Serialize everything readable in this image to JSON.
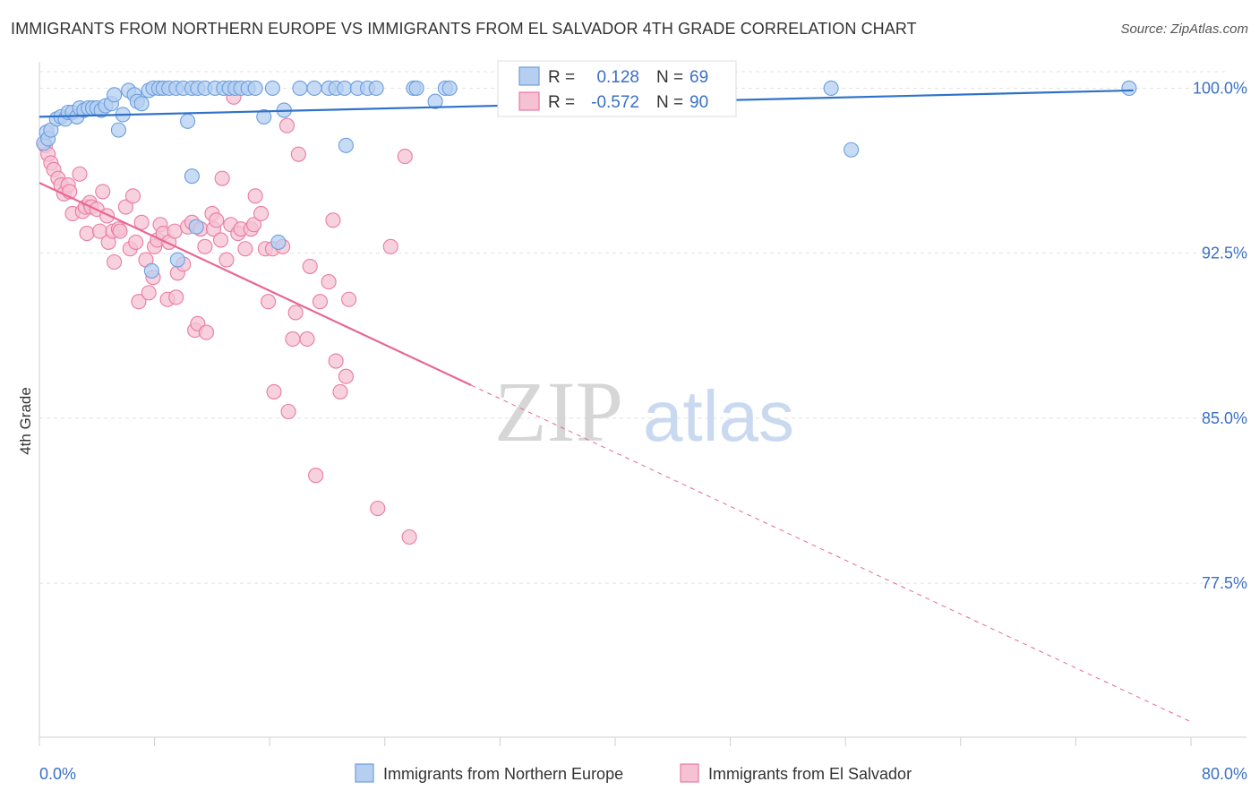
{
  "title": "IMMIGRANTS FROM NORTHERN EUROPE VS IMMIGRANTS FROM EL SALVADOR 4TH GRADE CORRELATION CHART",
  "source": "Source: ZipAtlas.com",
  "watermark": {
    "zip": "ZIP",
    "atlas": "atlas"
  },
  "colors": {
    "blue": "#6a9ee0",
    "blue_fill": "#b6cff0",
    "pink": "#ea7ba2",
    "pink_fill": "#f5c1d3",
    "blue_line": "#2f72c8",
    "pink_line": "#e86794",
    "label": "#3a6fc4"
  },
  "chart_data": {
    "type": "scatter",
    "title": "IMMIGRANTS FROM NORTHERN EUROPE VS IMMIGRANTS FROM EL SALVADOR 4TH GRADE CORRELATION CHART",
    "xlabel": "",
    "ylabel": "4th Grade",
    "xlim": [
      0,
      80
    ],
    "ylim": [
      70.5,
      101.2
    ],
    "x_tick_labels": [
      "0.0%",
      "80.0%"
    ],
    "y_ticks": [
      77.5,
      85.0,
      92.5,
      100.0
    ],
    "y_tick_labels": [
      "77.5%",
      "85.0%",
      "92.5%",
      "100.0%"
    ],
    "grid": true,
    "legend_position": "bottom-center",
    "stats": [
      {
        "r_label": "R =",
        "r": "0.128",
        "n_label": "N =",
        "n": "69"
      },
      {
        "r_label": "R =",
        "r": "-0.572",
        "n_label": "N =",
        "n": "90"
      }
    ],
    "series": [
      {
        "name": "Immigrants from Northern Europe",
        "trend": {
          "x": [
            0,
            76
          ],
          "y": [
            98.7,
            99.9
          ]
        },
        "points": [
          [
            0.3,
            97.5
          ],
          [
            0.5,
            98.0
          ],
          [
            0.6,
            97.7
          ],
          [
            0.8,
            98.1
          ],
          [
            1.2,
            98.6
          ],
          [
            1.5,
            98.7
          ],
          [
            1.8,
            98.6
          ],
          [
            2.0,
            98.9
          ],
          [
            2.3,
            98.9
          ],
          [
            2.6,
            98.7
          ],
          [
            2.8,
            99.1
          ],
          [
            3.1,
            99.0
          ],
          [
            3.4,
            99.1
          ],
          [
            3.7,
            99.1
          ],
          [
            4.0,
            99.1
          ],
          [
            4.3,
            99.0
          ],
          [
            4.6,
            99.2
          ],
          [
            5.0,
            99.3
          ],
          [
            5.2,
            99.7
          ],
          [
            5.5,
            98.1
          ],
          [
            5.8,
            98.8
          ],
          [
            6.2,
            99.9
          ],
          [
            6.6,
            99.7
          ],
          [
            6.8,
            99.4
          ],
          [
            7.1,
            99.3
          ],
          [
            7.6,
            99.9
          ],
          [
            7.9,
            100.0
          ],
          [
            8.3,
            100.0
          ],
          [
            8.6,
            100.0
          ],
          [
            9.0,
            100.0
          ],
          [
            9.5,
            100.0
          ],
          [
            10.0,
            100.0
          ],
          [
            10.3,
            98.5
          ],
          [
            10.6,
            100.0
          ],
          [
            11.0,
            100.0
          ],
          [
            11.5,
            100.0
          ],
          [
            12.2,
            100.0
          ],
          [
            12.8,
            100.0
          ],
          [
            13.2,
            100.0
          ],
          [
            13.6,
            100.0
          ],
          [
            14.0,
            100.0
          ],
          [
            14.5,
            100.0
          ],
          [
            15.0,
            100.0
          ],
          [
            15.6,
            98.7
          ],
          [
            16.2,
            100.0
          ],
          [
            17.0,
            99.0
          ],
          [
            18.1,
            100.0
          ],
          [
            19.1,
            100.0
          ],
          [
            20.1,
            100.0
          ],
          [
            20.6,
            100.0
          ],
          [
            21.2,
            100.0
          ],
          [
            22.1,
            100.0
          ],
          [
            22.8,
            100.0
          ],
          [
            23.4,
            100.0
          ],
          [
            26.0,
            100.0
          ],
          [
            26.2,
            100.0
          ],
          [
            27.5,
            99.4
          ],
          [
            28.2,
            100.0
          ],
          [
            28.5,
            100.0
          ],
          [
            33.0,
            100.0
          ],
          [
            55.0,
            100.0
          ],
          [
            56.4,
            97.2
          ],
          [
            75.7,
            100.0
          ],
          [
            21.3,
            97.4
          ],
          [
            10.6,
            96.0
          ],
          [
            10.9,
            93.7
          ],
          [
            9.6,
            92.2
          ],
          [
            7.8,
            91.7
          ],
          [
            16.6,
            93.0
          ]
        ]
      },
      {
        "name": "Immigrants from El Salvador",
        "trend": {
          "x": [
            0,
            30
          ],
          "y": [
            95.7,
            86.5
          ]
        },
        "trend_extension": {
          "x": [
            30,
            80
          ],
          "y": [
            86.5,
            71.2
          ]
        },
        "points": [
          [
            0.4,
            97.4
          ],
          [
            0.6,
            97.0
          ],
          [
            0.8,
            96.6
          ],
          [
            1.0,
            96.3
          ],
          [
            1.3,
            95.9
          ],
          [
            1.5,
            95.6
          ],
          [
            1.7,
            95.2
          ],
          [
            2.0,
            95.6
          ],
          [
            2.1,
            95.3
          ],
          [
            2.3,
            94.3
          ],
          [
            2.8,
            96.1
          ],
          [
            3.0,
            94.4
          ],
          [
            3.2,
            94.6
          ],
          [
            3.3,
            93.4
          ],
          [
            3.5,
            94.8
          ],
          [
            3.6,
            94.6
          ],
          [
            4.0,
            94.5
          ],
          [
            4.2,
            93.5
          ],
          [
            4.4,
            95.3
          ],
          [
            4.7,
            94.2
          ],
          [
            4.8,
            93.0
          ],
          [
            5.1,
            93.5
          ],
          [
            5.2,
            92.1
          ],
          [
            5.5,
            93.6
          ],
          [
            5.6,
            93.5
          ],
          [
            6.0,
            94.6
          ],
          [
            6.3,
            92.7
          ],
          [
            6.5,
            95.1
          ],
          [
            6.7,
            93.0
          ],
          [
            6.9,
            90.3
          ],
          [
            7.1,
            93.9
          ],
          [
            7.4,
            92.2
          ],
          [
            7.6,
            90.7
          ],
          [
            7.9,
            91.4
          ],
          [
            8.0,
            92.8
          ],
          [
            8.2,
            93.1
          ],
          [
            8.4,
            93.8
          ],
          [
            8.6,
            93.4
          ],
          [
            8.9,
            90.4
          ],
          [
            9.0,
            93.0
          ],
          [
            9.4,
            93.5
          ],
          [
            9.5,
            90.5
          ],
          [
            9.6,
            91.6
          ],
          [
            10.0,
            92.0
          ],
          [
            10.3,
            93.7
          ],
          [
            10.6,
            93.9
          ],
          [
            10.8,
            89.0
          ],
          [
            11.0,
            89.3
          ],
          [
            11.2,
            93.6
          ],
          [
            11.5,
            92.8
          ],
          [
            11.6,
            88.9
          ],
          [
            12.0,
            94.3
          ],
          [
            12.1,
            93.6
          ],
          [
            12.3,
            94.0
          ],
          [
            12.6,
            93.1
          ],
          [
            12.7,
            95.9
          ],
          [
            13.0,
            92.2
          ],
          [
            13.3,
            93.8
          ],
          [
            13.5,
            99.6
          ],
          [
            13.8,
            93.4
          ],
          [
            14.0,
            93.6
          ],
          [
            14.3,
            92.7
          ],
          [
            14.7,
            93.6
          ],
          [
            14.9,
            93.8
          ],
          [
            15.0,
            95.1
          ],
          [
            15.4,
            94.3
          ],
          [
            15.7,
            92.7
          ],
          [
            15.9,
            90.3
          ],
          [
            16.2,
            92.7
          ],
          [
            16.3,
            86.2
          ],
          [
            16.9,
            92.8
          ],
          [
            17.3,
            85.3
          ],
          [
            17.6,
            88.6
          ],
          [
            17.8,
            89.8
          ],
          [
            18.0,
            97.0
          ],
          [
            18.6,
            88.6
          ],
          [
            18.8,
            91.9
          ],
          [
            19.2,
            82.4
          ],
          [
            19.5,
            90.3
          ],
          [
            20.1,
            91.2
          ],
          [
            20.4,
            94.0
          ],
          [
            20.6,
            87.6
          ],
          [
            20.9,
            86.2
          ],
          [
            21.3,
            86.9
          ],
          [
            21.5,
            90.4
          ],
          [
            23.5,
            80.9
          ],
          [
            24.4,
            92.8
          ],
          [
            25.4,
            96.9
          ],
          [
            25.7,
            79.6
          ],
          [
            17.2,
            98.3
          ]
        ]
      }
    ]
  }
}
